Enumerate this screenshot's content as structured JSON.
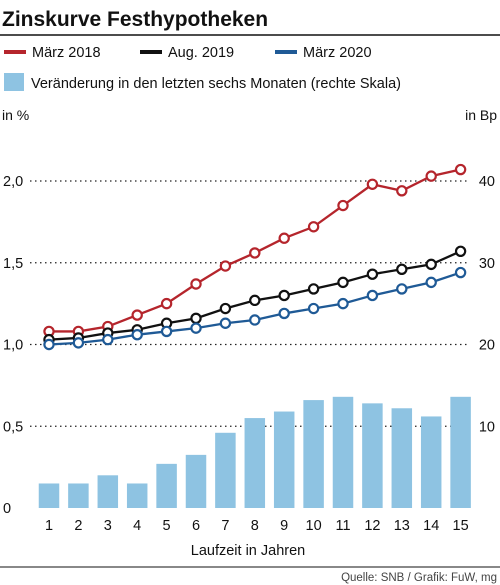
{
  "chart_data": {
    "type": "line",
    "title": "Zinskurve Festhypotheken",
    "xlabel": "Laufzeit in Jahren",
    "ylabel_left": "in %",
    "ylabel_right": "in Bp",
    "x": [
      1,
      2,
      3,
      4,
      5,
      6,
      7,
      8,
      9,
      10,
      11,
      12,
      13,
      14,
      15
    ],
    "x_ticks": [
      "1",
      "2",
      "3",
      "4",
      "5",
      "6",
      "7",
      "8",
      "9",
      "10",
      "11",
      "12",
      "13",
      "14",
      "15"
    ],
    "ylim_left": [
      0,
      2.2
    ],
    "yticks_left": [
      "0",
      "0,5",
      "1,0",
      "1,5",
      "2,0"
    ],
    "yticks_left_values": [
      0,
      0.5,
      1.0,
      1.5,
      2.0
    ],
    "ylim_right": [
      0,
      44
    ],
    "yticks_right": [
      "10",
      "20",
      "30",
      "40"
    ],
    "yticks_right_values": [
      10,
      20,
      30,
      40
    ],
    "grid": "horizontal-dotted",
    "legend_position": "top",
    "series": [
      {
        "name": "März 2018",
        "type": "line",
        "axis": "left",
        "color": "#b5252c",
        "values": [
          1.08,
          1.08,
          1.11,
          1.18,
          1.25,
          1.37,
          1.48,
          1.56,
          1.65,
          1.72,
          1.85,
          1.98,
          1.94,
          2.03,
          2.07
        ]
      },
      {
        "name": "Aug. 2019",
        "type": "line",
        "axis": "left",
        "color": "#111111",
        "values": [
          1.03,
          1.04,
          1.07,
          1.09,
          1.13,
          1.16,
          1.22,
          1.27,
          1.3,
          1.34,
          1.38,
          1.43,
          1.46,
          1.49,
          1.57
        ]
      },
      {
        "name": "März 2020",
        "type": "line",
        "axis": "left",
        "color": "#1f5a96",
        "values": [
          1.0,
          1.01,
          1.03,
          1.06,
          1.08,
          1.1,
          1.13,
          1.15,
          1.19,
          1.22,
          1.25,
          1.3,
          1.34,
          1.38,
          1.44
        ]
      },
      {
        "name": "Veränderung in den letzten sechs Monaten (rechte Skala)",
        "type": "bar",
        "axis": "right",
        "color": "#8ec3e2",
        "values": [
          3,
          3,
          4,
          3,
          5.4,
          6.5,
          9.2,
          11,
          11.8,
          13.2,
          13.6,
          12.8,
          12.2,
          11.2,
          13.6
        ]
      }
    ]
  },
  "source": "Quelle: SNB / Grafik: FuW, mg"
}
